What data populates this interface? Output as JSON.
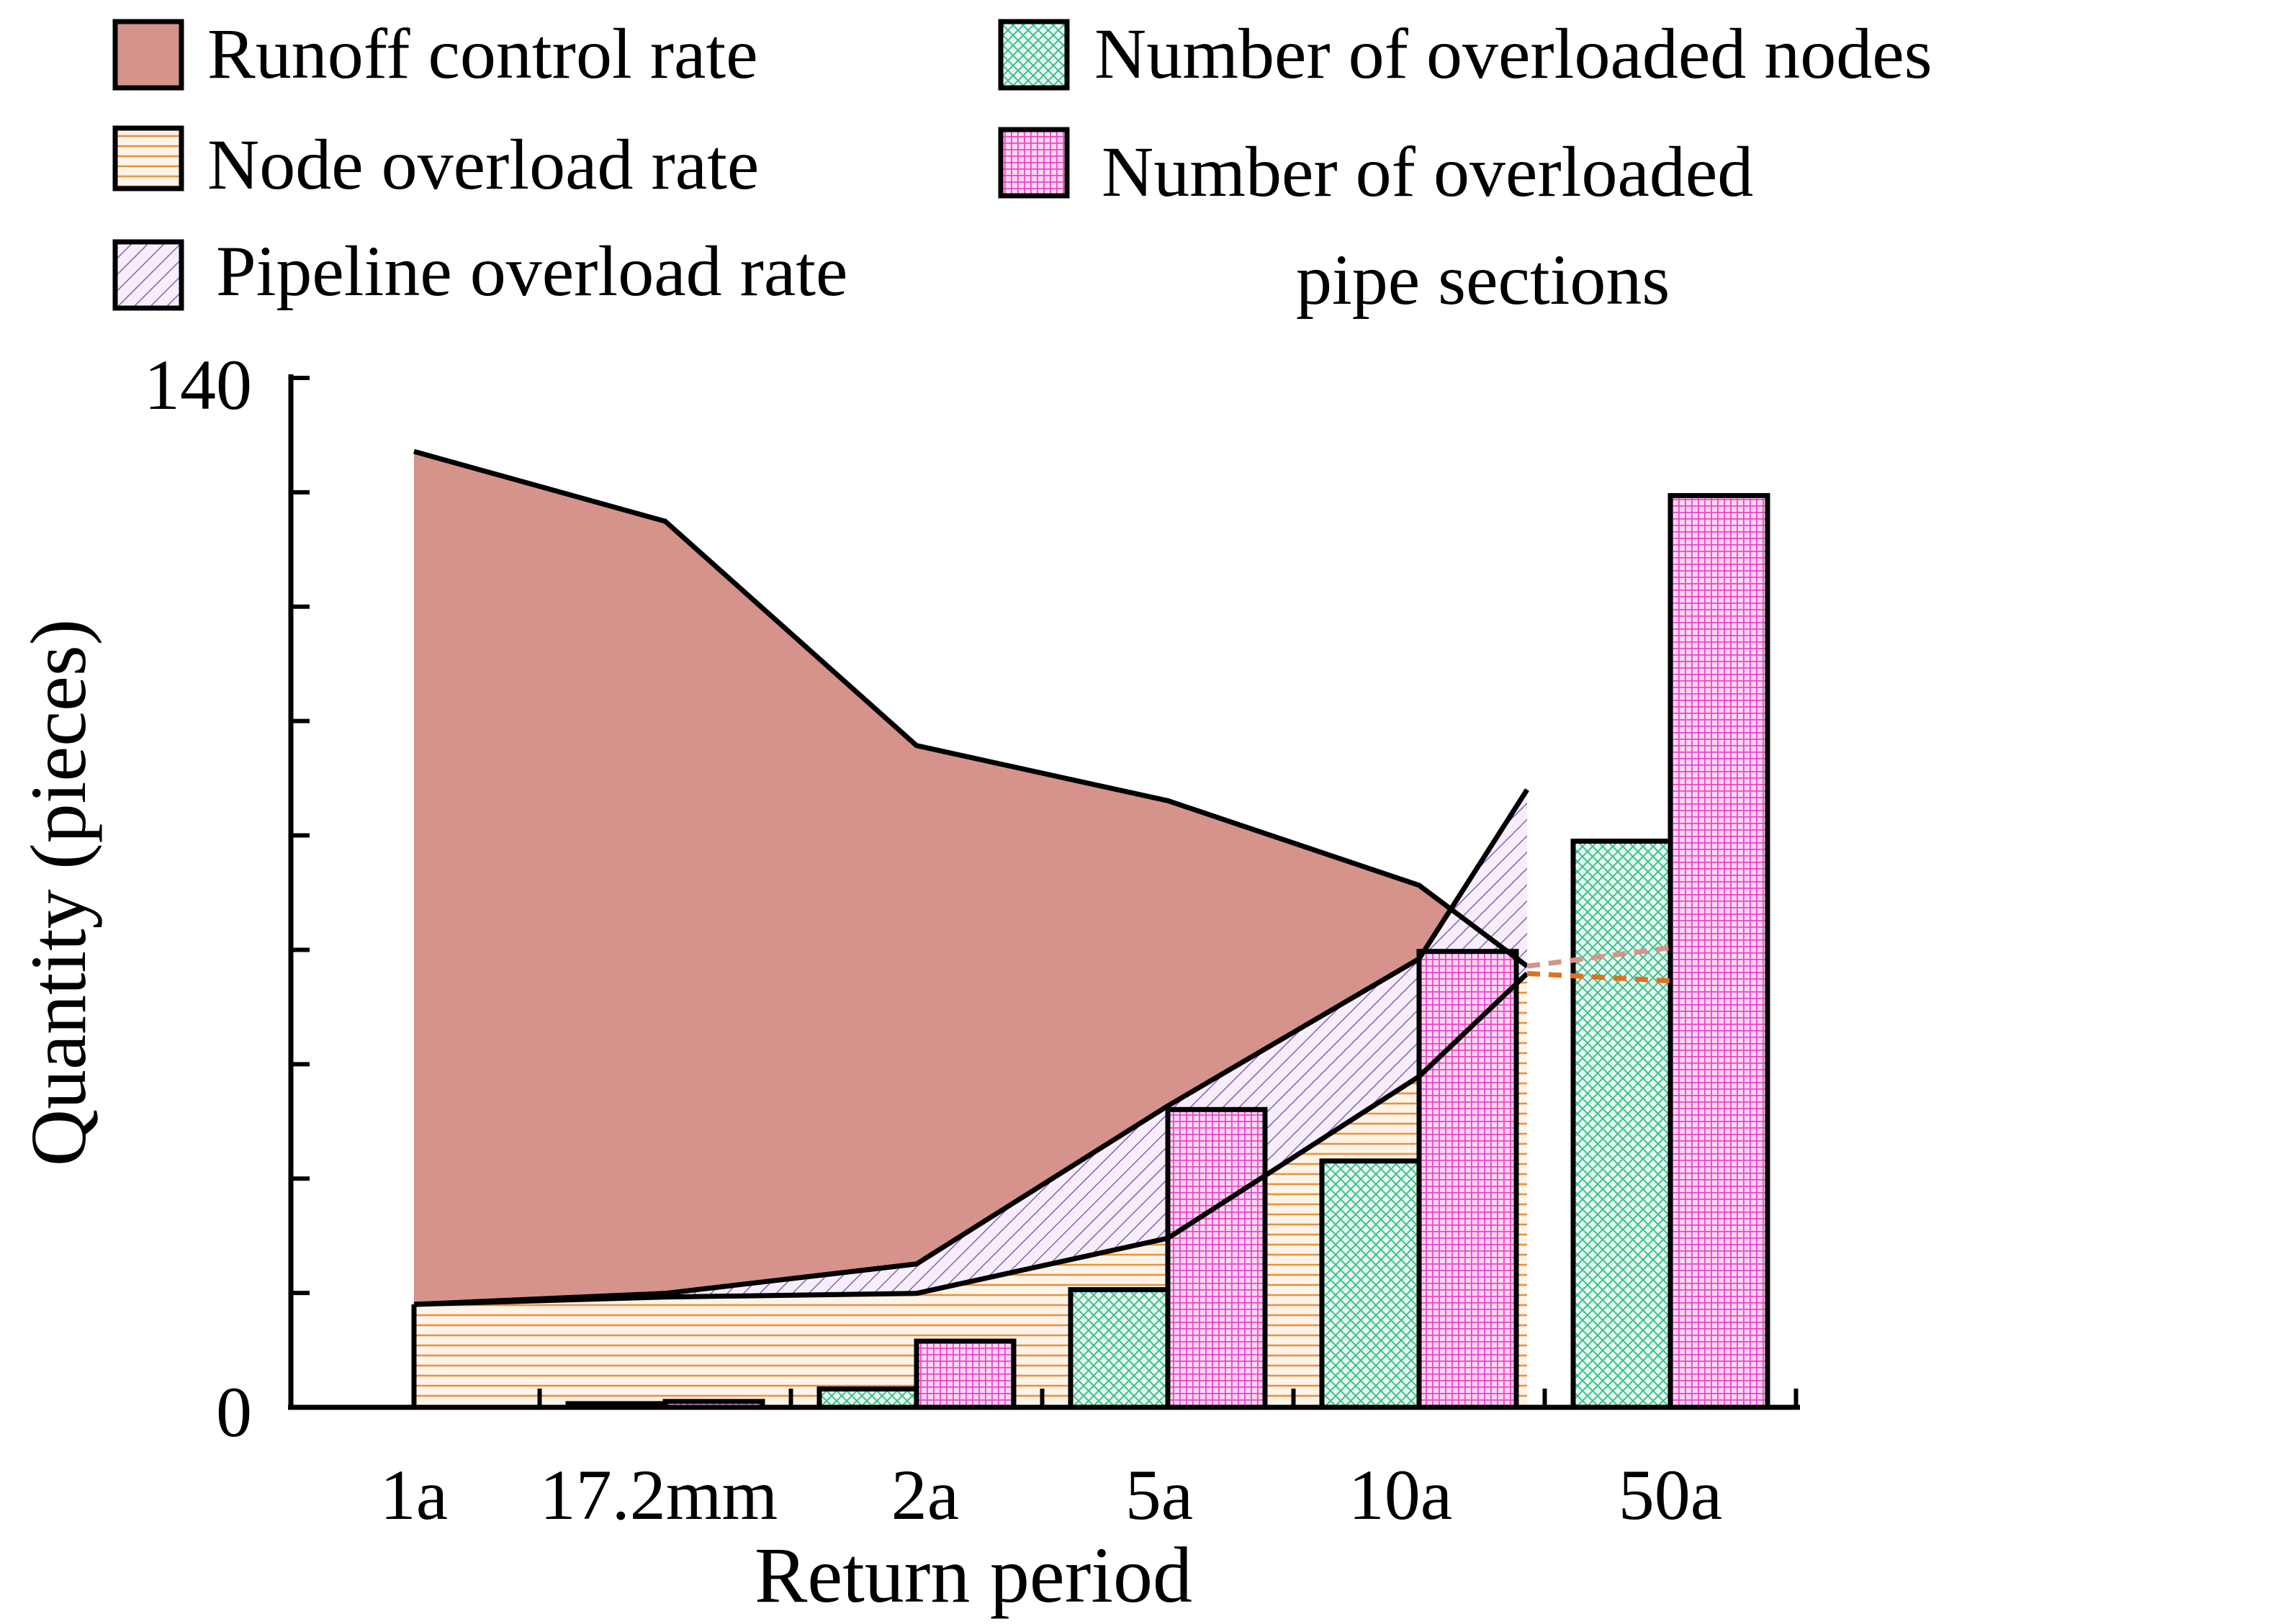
{
  "chart_data": {
    "type": "bar",
    "xlabel": "Return period",
    "ylabel": "Quantity (pieces)",
    "ylim": [
      0,
      140
    ],
    "ytick_labels": [
      "140",
      "0"
    ],
    "categories": [
      "1a",
      "17.2mm",
      "2a",
      "5a",
      "10a",
      "50a"
    ],
    "legend": [
      {
        "name": "Runoff control rate",
        "pattern": "solid",
        "color": "#d6938b"
      },
      {
        "name": "Number of overloaded nodes",
        "pattern": "crosshatch",
        "color": "#3dbf8f"
      },
      {
        "name": "Node overload rate",
        "pattern": "horizontal",
        "color": "#e8913a"
      },
      {
        "name": "Number of overloaded pipe sections",
        "pattern": "grid",
        "color": "#ee44cc"
      },
      {
        "name": "Pipeline overload rate",
        "pattern": "diagonal",
        "color": "#8a5fb0"
      }
    ],
    "bars": {
      "nodes": [
        0,
        0.5,
        2.5,
        16,
        33.5,
        77
      ],
      "pipes": [
        0,
        0.8,
        9,
        40.5,
        62,
        124
      ]
    },
    "areas": {
      "runoff_control_top": [
        130,
        120.5,
        90,
        82.5,
        71,
        60
      ],
      "pipeline_overload_top": [
        14,
        15.5,
        19.5,
        41,
        61,
        84
      ],
      "node_overload_top": [
        14,
        15,
        15.5,
        23,
        45,
        59
      ]
    },
    "dashed_extension": {
      "runoff_end": 62.5,
      "node_end": 58
    },
    "colors": {
      "runoff": "#d6938b",
      "nodes": "#3dbf8f",
      "pipes": "#ee44cc",
      "node_rate": "#e8913a",
      "pipe_rate": "#8a5fb0",
      "dash_runoff": "#d6938b",
      "dash_node": "#e07020"
    }
  }
}
